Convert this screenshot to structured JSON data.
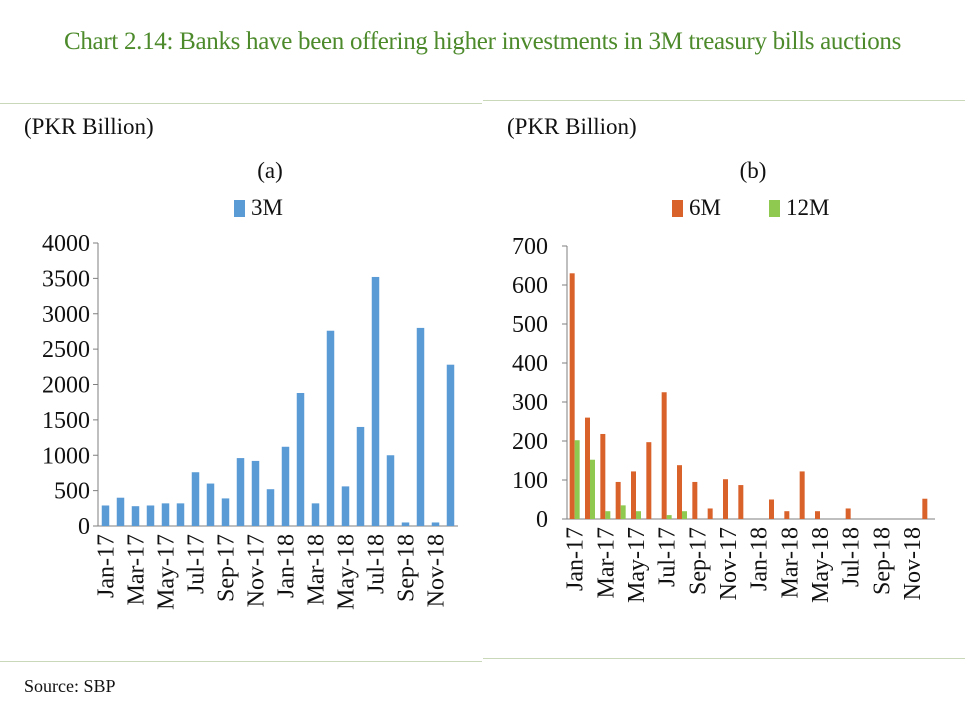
{
  "title": "Chart 2.14: Banks have been offering higher investments in 3M treasury bills auctions",
  "source": "Source:  SBP",
  "chart_data": [
    {
      "type": "bar",
      "panel": "(a)",
      "unit_label": "(PKR Billion)",
      "legend_position": "top",
      "categories": [
        "Jan-17",
        "Feb-17",
        "Mar-17",
        "Apr-17",
        "May-17",
        "Jun-17",
        "Jul-17",
        "Aug-17",
        "Sep-17",
        "Oct-17",
        "Nov-17",
        "Dec-17",
        "Jan-18",
        "Feb-18",
        "Mar-18",
        "Apr-18",
        "May-18",
        "Jun-18",
        "Jul-18",
        "Aug-18",
        "Sep-18",
        "Oct-18",
        "Nov-18",
        "Dec-18"
      ],
      "tick_labels": [
        "Jan-17",
        "Mar-17",
        "May-17",
        "Jul-17",
        "Sep-17",
        "Nov-17",
        "Jan-18",
        "Mar-18",
        "May-18",
        "Jul-18",
        "Sep-18",
        "Nov-18"
      ],
      "ylim": [
        0,
        4000
      ],
      "yticks": [
        0,
        500,
        1000,
        1500,
        2000,
        2500,
        3000,
        3500,
        4000
      ],
      "series": [
        {
          "name": "3M",
          "color": "#5b9bd5",
          "values": [
            290,
            400,
            280,
            290,
            320,
            320,
            760,
            600,
            390,
            960,
            920,
            520,
            1120,
            1880,
            320,
            2760,
            560,
            1400,
            3520,
            1000,
            50,
            2800,
            50,
            2280
          ]
        }
      ]
    },
    {
      "type": "bar",
      "panel": "(b)",
      "unit_label": "(PKR Billion)",
      "legend_position": "top",
      "categories": [
        "Jan-17",
        "Feb-17",
        "Mar-17",
        "Apr-17",
        "May-17",
        "Jun-17",
        "Jul-17",
        "Aug-17",
        "Sep-17",
        "Oct-17",
        "Nov-17",
        "Dec-17",
        "Jan-18",
        "Feb-18",
        "Mar-18",
        "Apr-18",
        "May-18",
        "Jun-18",
        "Jul-18",
        "Aug-18",
        "Sep-18",
        "Oct-18",
        "Nov-18",
        "Dec-18"
      ],
      "tick_labels": [
        "Jan-17",
        "Mar-17",
        "May-17",
        "Jul-17",
        "Sep-17",
        "Nov-17",
        "Jan-18",
        "Mar-18",
        "May-18",
        "Jul-18",
        "Sep-18",
        "Nov-18"
      ],
      "ylim": [
        0,
        700
      ],
      "yticks": [
        0,
        100,
        200,
        300,
        400,
        500,
        600,
        700
      ],
      "series": [
        {
          "name": "6M",
          "color": "#d9622b",
          "values": [
            630,
            260,
            218,
            95,
            122,
            197,
            325,
            138,
            95,
            27,
            102,
            87,
            0,
            50,
            20,
            122,
            20,
            0,
            27,
            0,
            0,
            0,
            0,
            52
          ]
        },
        {
          "name": "12M",
          "color": "#8fc950",
          "values": [
            202,
            152,
            20,
            35,
            20,
            0,
            10,
            20,
            0,
            0,
            0,
            0,
            0,
            0,
            0,
            0,
            0,
            0,
            0,
            0,
            0,
            0,
            0,
            0
          ]
        }
      ]
    }
  ]
}
